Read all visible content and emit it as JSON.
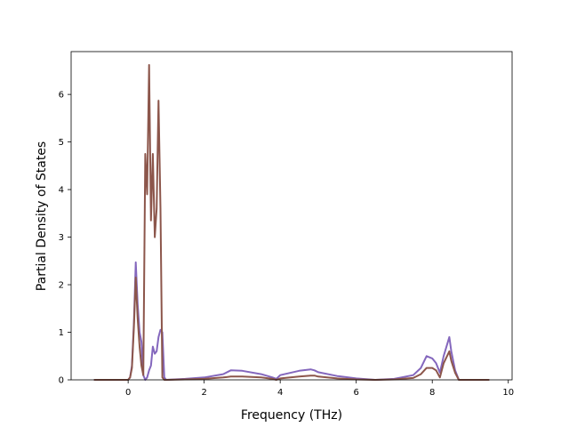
{
  "chart_data": {
    "type": "line",
    "xlabel": "Frequency (THz)",
    "ylabel": "Partial Density of States",
    "xlim": [
      -1.5,
      10.1
    ],
    "ylim": [
      0,
      6.9
    ],
    "xticks": [
      0,
      2,
      4,
      6,
      8,
      10
    ],
    "yticks": [
      0,
      1,
      2,
      3,
      4,
      5,
      6
    ],
    "grid": false,
    "series": [
      {
        "color": "#8467bd",
        "x": [
          -0.9,
          0.0,
          0.05,
          0.1,
          0.15,
          0.2,
          0.25,
          0.3,
          0.35,
          0.4,
          0.45,
          0.5,
          0.55,
          0.6,
          0.65,
          0.7,
          0.75,
          0.8,
          0.85,
          0.9,
          0.95,
          1.0,
          1.5,
          2.0,
          2.5,
          2.7,
          3.0,
          3.5,
          3.8,
          3.9,
          4.0,
          4.5,
          4.8,
          4.9,
          5.0,
          5.5,
          6.0,
          6.5,
          7.0,
          7.5,
          7.7,
          7.85,
          8.0,
          8.1,
          8.2,
          8.3,
          8.45,
          8.5,
          8.6,
          8.7,
          9.0,
          9.5
        ],
        "y": [
          0,
          0,
          0.05,
          0.3,
          1.2,
          2.47,
          1.6,
          1.0,
          0.8,
          0.1,
          0,
          0.05,
          0.2,
          0.3,
          0.7,
          0.55,
          0.6,
          0.9,
          1.05,
          1.0,
          0.05,
          0,
          0.02,
          0.05,
          0.12,
          0.2,
          0.19,
          0.12,
          0.05,
          0.02,
          0.1,
          0.19,
          0.22,
          0.2,
          0.16,
          0.08,
          0.03,
          0,
          0.02,
          0.1,
          0.25,
          0.5,
          0.45,
          0.35,
          0.15,
          0.5,
          0.9,
          0.6,
          0.2,
          0,
          0,
          0
        ]
      },
      {
        "color": "#8c564b",
        "x": [
          -0.9,
          0.0,
          0.05,
          0.1,
          0.15,
          0.2,
          0.25,
          0.3,
          0.35,
          0.4,
          0.45,
          0.5,
          0.55,
          0.6,
          0.65,
          0.7,
          0.75,
          0.8,
          0.85,
          0.9,
          0.95,
          1.0,
          1.5,
          2.0,
          2.5,
          2.7,
          3.0,
          3.5,
          3.8,
          3.9,
          4.0,
          4.5,
          4.8,
          4.9,
          5.0,
          5.5,
          6.0,
          6.5,
          7.0,
          7.5,
          7.7,
          7.85,
          8.0,
          8.1,
          8.2,
          8.3,
          8.45,
          8.5,
          8.6,
          8.7,
          9.0,
          9.5
        ],
        "y": [
          0,
          0,
          0.05,
          0.25,
          1.1,
          2.15,
          1.3,
          0.7,
          0.3,
          0.1,
          4.75,
          3.9,
          6.62,
          3.35,
          4.75,
          3.0,
          3.6,
          5.87,
          3.6,
          0.05,
          0.0,
          0,
          0.01,
          0.02,
          0.05,
          0.07,
          0.07,
          0.05,
          0.02,
          0.0,
          0.03,
          0.07,
          0.09,
          0.09,
          0.07,
          0.03,
          0.01,
          0,
          0.01,
          0.04,
          0.12,
          0.25,
          0.25,
          0.2,
          0.05,
          0.35,
          0.6,
          0.4,
          0.15,
          0,
          0,
          0
        ]
      }
    ]
  }
}
